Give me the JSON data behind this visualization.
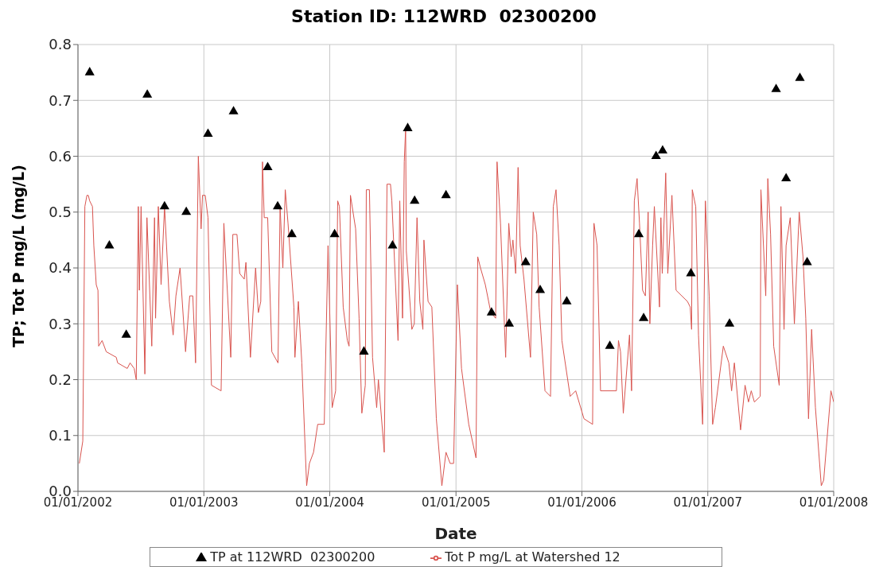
{
  "chart_data": {
    "type": "line",
    "title": "Station ID: 112WRD  02300200",
    "xlabel": "Date",
    "ylabel": "TP; Tot P mg/L  (mg/L)",
    "xlim": [
      "2002-01-01",
      "2008-01-01"
    ],
    "xticks": [
      {
        "value": "2002-01-01",
        "label": "01/01/2002"
      },
      {
        "value": "2003-01-01",
        "label": "01/01/2003"
      },
      {
        "value": "2004-01-01",
        "label": "01/01/2004"
      },
      {
        "value": "2005-01-01",
        "label": "01/01/2005"
      },
      {
        "value": "2006-01-01",
        "label": "01/01/2006"
      },
      {
        "value": "2007-01-01",
        "label": "01/01/2007"
      },
      {
        "value": "2008-01-01",
        "label": "01/01/2008"
      }
    ],
    "ylim": [
      0,
      0.8
    ],
    "yticks": [
      {
        "value": 0,
        "label": "0.0"
      },
      0.1,
      0.2,
      0.3,
      0.4,
      0.5,
      0.6,
      0.7,
      0.8
    ],
    "grid": true,
    "legend": "bottom",
    "series": [
      {
        "name": "TP at 112WRD  02300200",
        "type": "scatter",
        "marker": "triangle",
        "color": "#000000",
        "x": [
          "2002-02-04",
          "2002-04-02",
          "2002-05-21",
          "2002-07-21",
          "2002-09-09",
          "2002-11-11",
          "2003-01-13",
          "2003-03-28",
          "2003-07-05",
          "2003-08-03",
          "2003-09-13",
          "2004-01-15",
          "2004-04-09",
          "2004-07-01",
          "2004-08-14",
          "2004-09-03",
          "2004-12-03",
          "2005-04-14",
          "2005-06-04",
          "2005-07-22",
          "2005-09-02",
          "2005-11-18",
          "2006-03-23",
          "2006-06-15",
          "2006-06-29",
          "2006-08-04",
          "2006-08-23",
          "2006-11-13",
          "2007-03-05",
          "2007-07-18",
          "2007-08-16",
          "2007-09-25",
          "2007-10-16"
        ],
        "values": [
          0.75,
          0.44,
          0.28,
          0.71,
          0.51,
          0.5,
          0.64,
          0.68,
          0.58,
          0.51,
          0.46,
          0.46,
          0.25,
          0.44,
          0.65,
          0.52,
          0.53,
          0.32,
          0.3,
          0.41,
          0.36,
          0.34,
          0.26,
          0.46,
          0.31,
          0.6,
          0.61,
          0.39,
          0.3,
          0.72,
          0.56,
          0.74,
          0.41
        ]
      },
      {
        "name": "Tot P mg/L at Watershed 12",
        "type": "line",
        "marker": "none",
        "color": "#d9544f",
        "x": [
          "2002-01-05",
          "2002-01-15",
          "2002-01-21",
          "2002-01-27",
          "2002-01-31",
          "2002-02-04",
          "2002-02-12",
          "2002-02-16",
          "2002-02-23",
          "2002-02-28",
          "2002-03-02",
          "2002-03-12",
          "2002-03-24",
          "2002-04-22",
          "2002-04-26",
          "2002-05-24",
          "2002-06-01",
          "2002-06-13",
          "2002-06-19",
          "2002-06-25",
          "2002-06-28",
          "2002-07-03",
          "2002-07-14",
          "2002-07-20",
          "2002-08-03",
          "2002-08-11",
          "2002-08-14",
          "2002-08-22",
          "2002-08-30",
          "2002-09-09",
          "2002-09-23",
          "2002-10-04",
          "2002-10-12",
          "2002-10-24",
          "2002-11-09",
          "2002-11-21",
          "2002-11-30",
          "2002-12-08",
          "2002-12-16",
          "2002-12-24",
          "2002-12-28",
          "2003-01-05",
          "2003-01-13",
          "2003-01-23",
          "2003-02-20",
          "2003-02-28",
          "2003-03-20",
          "2003-03-26",
          "2003-04-07",
          "2003-04-15",
          "2003-04-28",
          "2003-05-03",
          "2003-05-16",
          "2003-05-31",
          "2003-06-08",
          "2003-06-15",
          "2003-06-20",
          "2003-06-25",
          "2003-07-05",
          "2003-07-17",
          "2003-08-04",
          "2003-08-10",
          "2003-08-18",
          "2003-08-25",
          "2003-09-02",
          "2003-09-19",
          "2003-09-22",
          "2003-10-02",
          "2003-10-12",
          "2003-10-26",
          "2003-11-03",
          "2003-11-15",
          "2003-11-27",
          "2003-12-16",
          "2003-12-27",
          "2004-01-08",
          "2004-01-18",
          "2004-01-24",
          "2004-01-29",
          "2004-02-09",
          "2004-02-21",
          "2004-02-26",
          "2004-03-01",
          "2004-03-16",
          "2004-03-26",
          "2004-04-03",
          "2004-04-13",
          "2004-04-16",
          "2004-04-25",
          "2004-05-04",
          "2004-05-16",
          "2004-05-21",
          "2004-06-07",
          "2004-06-15",
          "2004-06-25",
          "2004-06-29",
          "2004-07-17",
          "2004-07-22",
          "2004-07-30",
          "2004-08-04",
          "2004-08-08",
          "2004-08-10",
          "2004-08-17",
          "2004-08-26",
          "2004-09-02",
          "2004-09-10",
          "2004-09-18",
          "2004-09-27",
          "2004-09-30",
          "2004-10-12",
          "2004-10-23",
          "2004-11-05",
          "2004-11-21",
          "2004-12-03",
          "2004-12-15",
          "2004-12-25",
          "2005-01-05",
          "2005-01-17",
          "2005-02-07",
          "2005-02-28",
          "2005-03-05",
          "2005-03-13",
          "2005-03-27",
          "2005-04-12",
          "2005-04-26",
          "2005-04-30",
          "2005-05-10",
          "2005-05-25",
          "2005-06-03",
          "2005-06-10",
          "2005-06-15",
          "2005-06-23",
          "2005-06-30",
          "2005-07-06",
          "2005-07-17",
          "2005-08-05",
          "2005-08-13",
          "2005-08-23",
          "2005-08-30",
          "2005-09-16",
          "2005-10-02",
          "2005-10-10",
          "2005-10-18",
          "2005-10-27",
          "2005-11-04",
          "2005-11-28",
          "2005-12-14",
          "2006-01-07",
          "2006-02-01",
          "2006-02-05",
          "2006-02-14",
          "2006-02-24",
          "2006-04-11",
          "2006-04-17",
          "2006-04-23",
          "2006-05-01",
          "2006-05-19",
          "2006-05-25",
          "2006-06-02",
          "2006-06-10",
          "2006-06-17",
          "2006-06-26",
          "2006-07-04",
          "2006-07-12",
          "2006-07-17",
          "2006-07-25",
          "2006-07-30",
          "2006-08-14",
          "2006-08-18",
          "2006-08-22",
          "2006-09-01",
          "2006-09-07",
          "2006-09-19",
          "2006-10-01",
          "2006-11-03",
          "2006-11-11",
          "2006-11-15",
          "2006-11-17",
          "2006-11-27",
          "2006-12-05",
          "2006-12-17",
          "2006-12-25",
          "2007-01-05",
          "2007-01-15",
          "2007-01-23",
          "2007-02-15",
          "2007-03-03",
          "2007-03-11",
          "2007-03-19",
          "2007-04-06",
          "2007-04-19",
          "2007-04-29",
          "2007-05-07",
          "2007-05-16",
          "2007-06-02",
          "2007-06-04",
          "2007-06-18",
          "2007-06-24",
          "2007-07-02",
          "2007-07-11",
          "2007-07-27",
          "2007-08-01",
          "2007-08-10",
          "2007-08-16",
          "2007-08-28",
          "2007-09-09",
          "2007-09-23",
          "2007-10-04",
          "2007-10-12",
          "2007-10-20",
          "2007-10-29",
          "2007-11-09",
          "2007-11-26",
          "2007-12-03",
          "2007-12-24",
          "2008-01-01"
        ],
        "values": [
          0.05,
          0.09,
          0.51,
          0.53,
          0.53,
          0.52,
          0.51,
          0.44,
          0.37,
          0.36,
          0.26,
          0.27,
          0.25,
          0.24,
          0.23,
          0.22,
          0.23,
          0.22,
          0.2,
          0.51,
          0.36,
          0.51,
          0.21,
          0.49,
          0.26,
          0.49,
          0.31,
          0.51,
          0.37,
          0.51,
          0.34,
          0.28,
          0.35,
          0.4,
          0.25,
          0.35,
          0.35,
          0.23,
          0.6,
          0.47,
          0.53,
          0.53,
          0.49,
          0.19,
          0.18,
          0.48,
          0.24,
          0.46,
          0.46,
          0.39,
          0.38,
          0.41,
          0.24,
          0.4,
          0.32,
          0.34,
          0.59,
          0.49,
          0.49,
          0.25,
          0.23,
          0.51,
          0.4,
          0.54,
          0.48,
          0.33,
          0.24,
          0.34,
          0.23,
          0.01,
          0.05,
          0.07,
          0.12,
          0.12,
          0.44,
          0.15,
          0.18,
          0.52,
          0.51,
          0.33,
          0.27,
          0.26,
          0.53,
          0.47,
          0.31,
          0.14,
          0.19,
          0.54,
          0.54,
          0.24,
          0.15,
          0.2,
          0.07,
          0.55,
          0.55,
          0.52,
          0.27,
          0.52,
          0.31,
          0.59,
          0.65,
          0.43,
          0.37,
          0.29,
          0.3,
          0.49,
          0.34,
          0.29,
          0.45,
          0.34,
          0.33,
          0.13,
          0.01,
          0.07,
          0.05,
          0.05,
          0.37,
          0.22,
          0.12,
          0.06,
          0.42,
          0.4,
          0.37,
          0.32,
          0.31,
          0.59,
          0.48,
          0.24,
          0.48,
          0.42,
          0.45,
          0.39,
          0.58,
          0.44,
          0.38,
          0.24,
          0.5,
          0.46,
          0.33,
          0.18,
          0.17,
          0.51,
          0.54,
          0.44,
          0.27,
          0.17,
          0.18,
          0.13,
          0.12,
          0.48,
          0.44,
          0.18,
          0.18,
          0.27,
          0.25,
          0.14,
          0.28,
          0.18,
          0.52,
          0.56,
          0.48,
          0.36,
          0.35,
          0.5,
          0.3,
          0.44,
          0.51,
          0.33,
          0.49,
          0.39,
          0.57,
          0.39,
          0.53,
          0.36,
          0.34,
          0.33,
          0.29,
          0.54,
          0.51,
          0.28,
          0.12,
          0.52,
          0.35,
          0.12,
          0.15,
          0.26,
          0.23,
          0.18,
          0.23,
          0.11,
          0.19,
          0.16,
          0.18,
          0.16,
          0.17,
          0.54,
          0.35,
          0.56,
          0.46,
          0.26,
          0.19,
          0.51,
          0.29,
          0.44,
          0.49,
          0.3,
          0.5,
          0.42,
          0.31,
          0.13,
          0.29,
          0.15,
          0.01,
          0.02,
          0.18,
          0.16
        ]
      }
    ]
  }
}
